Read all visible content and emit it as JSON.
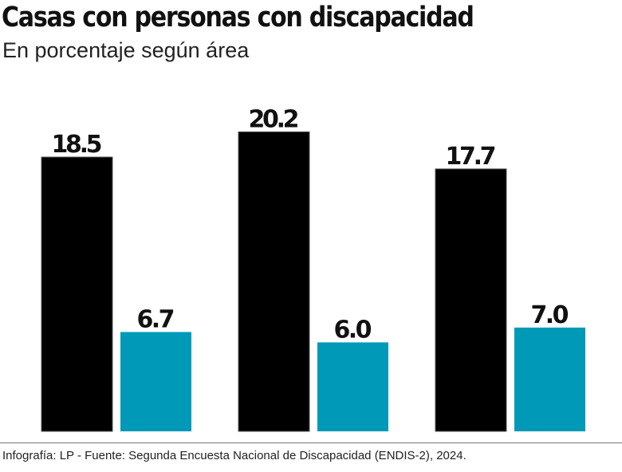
{
  "chart_data": {
    "type": "bar",
    "title": "Casas con personas con discapacidad",
    "subtitle": "En porcentaje según área",
    "categories": [
      "",
      "",
      ""
    ],
    "series": [
      {
        "values": [
          18.5,
          20.2,
          17.7
        ],
        "color": "#000000"
      },
      {
        "values": [
          6.7,
          6.0,
          7.0
        ],
        "color": "#0099b8"
      }
    ],
    "data_labels": true,
    "ylim": [
      0,
      20.2
    ],
    "grid": false,
    "legend": "none",
    "source": "Infografía: LP - Fuente: Segunda Encuesta Nacional de Discapacidad (ENDIS-2), 2024."
  }
}
